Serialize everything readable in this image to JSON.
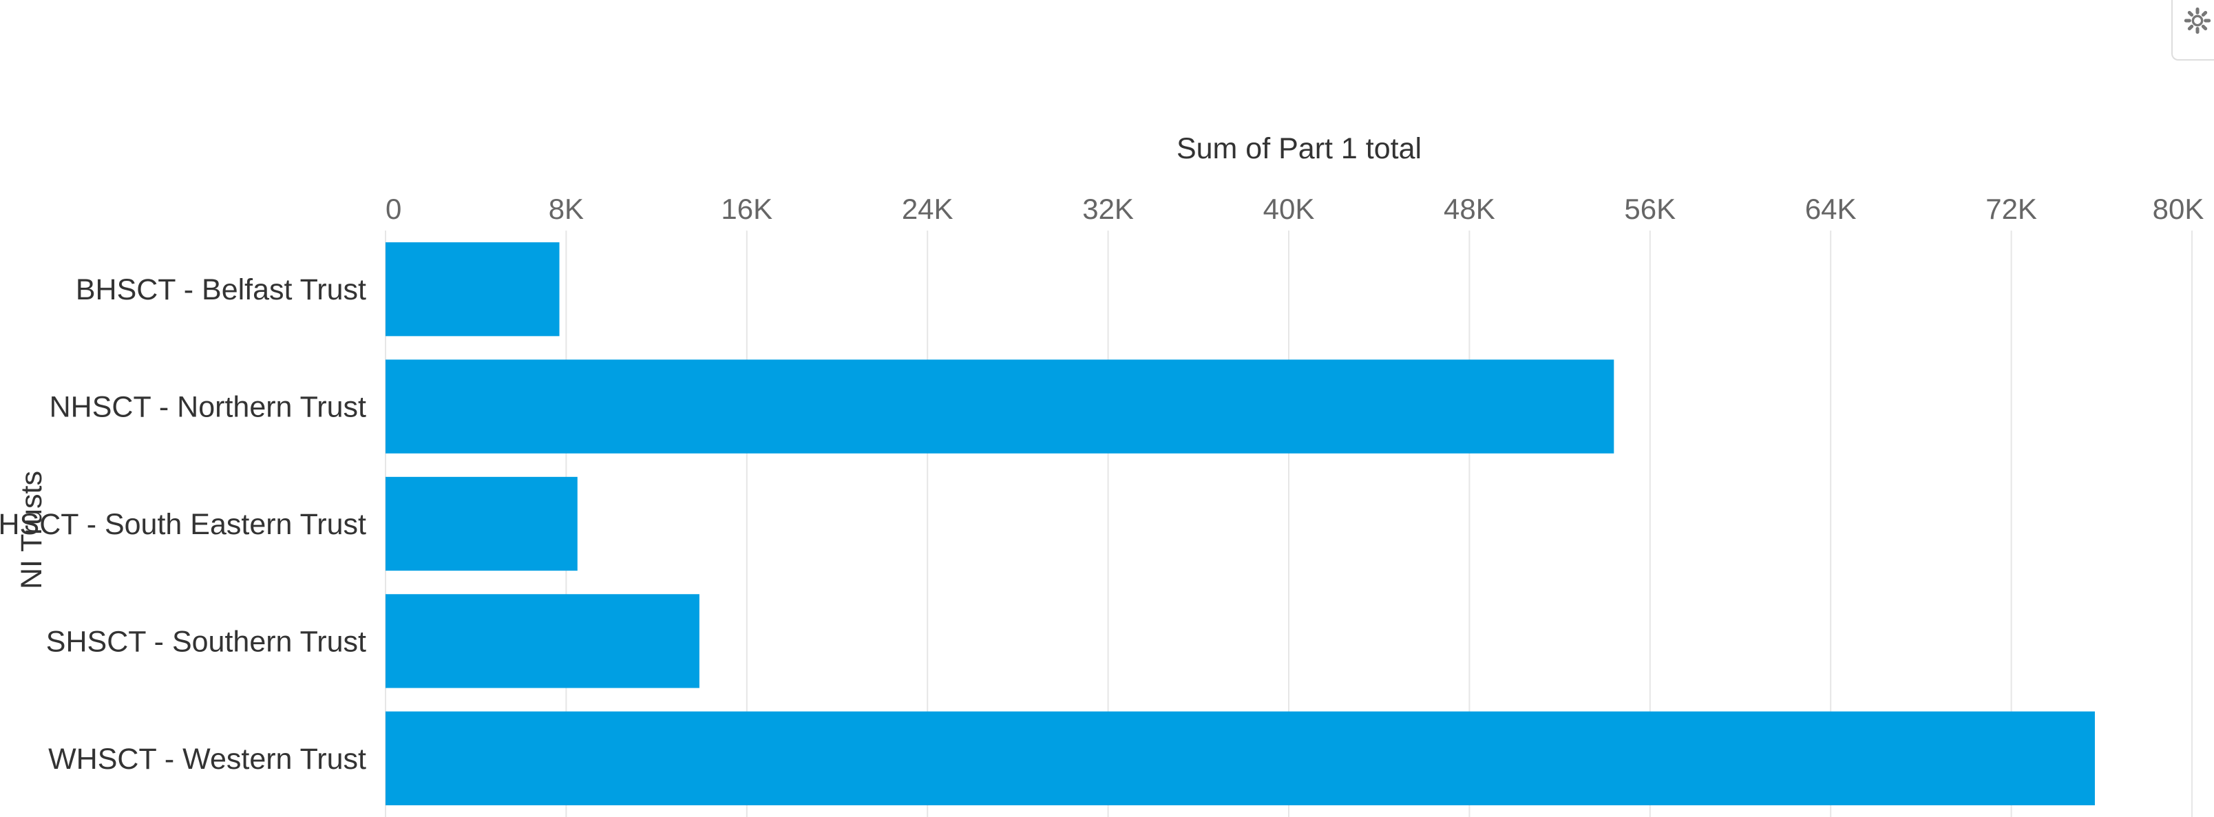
{
  "chart_data": {
    "type": "bar",
    "orientation": "horizontal",
    "xlabel": "Sum of Part 1 total",
    "ylabel": "NI Trusts",
    "xlim": [
      0,
      80000
    ],
    "x_ticks": [
      0,
      8000,
      16000,
      24000,
      32000,
      40000,
      48000,
      56000,
      64000,
      72000,
      80000
    ],
    "x_tick_labels": [
      "0",
      "8K",
      "16K",
      "24K",
      "32K",
      "40K",
      "48K",
      "56K",
      "64K",
      "72K",
      "80K"
    ],
    "x_axis_position": "top",
    "grid": true,
    "categories": [
      "BHSCT - Belfast Trust",
      "NHSCT - Northern Trust",
      "SEHSCT - South Eastern Trust",
      "SHSCT - Southern Trust",
      "WHSCT - Western Trust"
    ],
    "values": [
      7700,
      54400,
      8500,
      13900,
      75700
    ],
    "bar_color": "#009fe3"
  },
  "toolbar": {
    "settings_icon": "gear-icon"
  }
}
